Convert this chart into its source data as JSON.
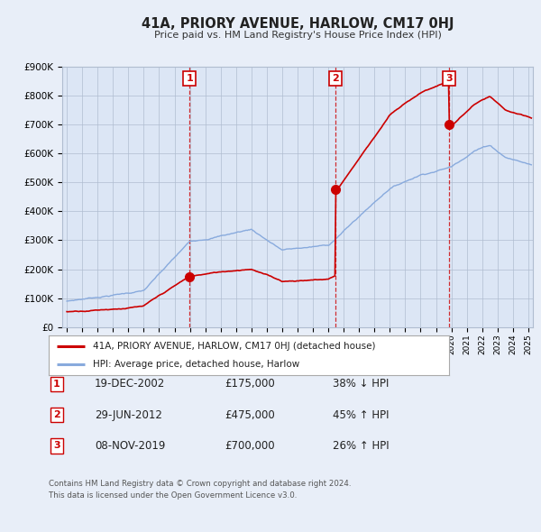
{
  "title": "41A, PRIORY AVENUE, HARLOW, CM17 0HJ",
  "subtitle": "Price paid vs. HM Land Registry's House Price Index (HPI)",
  "ylim": [
    0,
    900000
  ],
  "yticks": [
    0,
    100000,
    200000,
    300000,
    400000,
    500000,
    600000,
    700000,
    800000,
    900000
  ],
  "ytick_labels": [
    "£0",
    "£100K",
    "£200K",
    "£300K",
    "£400K",
    "£500K",
    "£600K",
    "£700K",
    "£800K",
    "£900K"
  ],
  "xlim_start": 1994.7,
  "xlim_end": 2025.3,
  "background_color": "#e8eef8",
  "plot_bg_color": "#dce6f5",
  "grid_color": "#b0bdd0",
  "red_line_color": "#cc0000",
  "blue_line_color": "#88aadd",
  "sale_marker_color": "#cc0000",
  "dashed_line_color": "#cc0000",
  "sales": [
    {
      "num": 1,
      "year": 2002.97,
      "price": 175000,
      "label": "19-DEC-2002",
      "price_label": "£175,000",
      "hpi_label": "38% ↓ HPI"
    },
    {
      "num": 2,
      "year": 2012.49,
      "price": 475000,
      "label": "29-JUN-2012",
      "price_label": "£475,000",
      "hpi_label": "45% ↑ HPI"
    },
    {
      "num": 3,
      "year": 2019.85,
      "price": 700000,
      "label": "08-NOV-2019",
      "price_label": "£700,000",
      "hpi_label": "26% ↑ HPI"
    }
  ],
  "legend_line1": "41A, PRIORY AVENUE, HARLOW, CM17 0HJ (detached house)",
  "legend_line2": "HPI: Average price, detached house, Harlow",
  "footer1": "Contains HM Land Registry data © Crown copyright and database right 2024.",
  "footer2": "This data is licensed under the Open Government Licence v3.0."
}
